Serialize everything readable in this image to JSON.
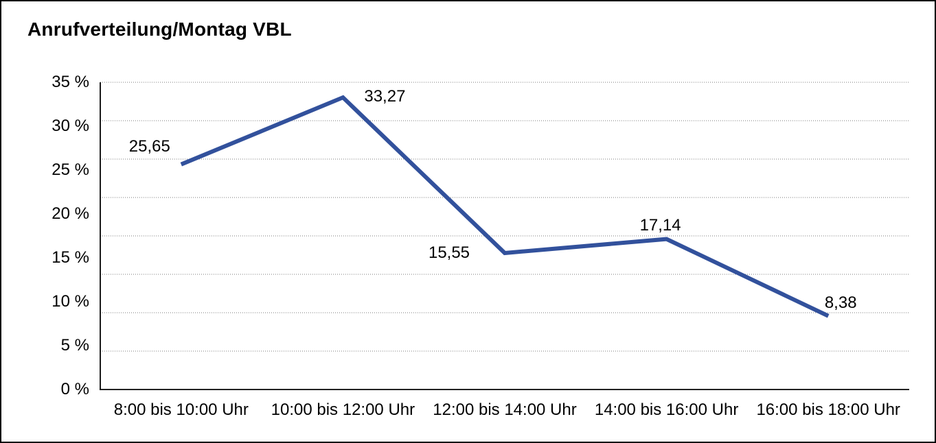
{
  "page": {
    "title": "Anrufverteilung/Montag VBL"
  },
  "chart_data": {
    "type": "line",
    "title": "Anrufverteilung/Montag VBL",
    "categories": [
      "8:00 bis 10:00 Uhr",
      "10:00 bis 12:00 Uhr",
      "12:00 bis 14:00 Uhr",
      "14:00 bis 16:00 Uhr",
      "16:00 bis 18:00 Uhr"
    ],
    "values": [
      25.65,
      33.27,
      15.55,
      17.14,
      8.38
    ],
    "data_labels": [
      "25,65",
      "33,27",
      "15,55",
      "17,14",
      "8,38"
    ],
    "xlabel": "",
    "ylabel": "",
    "y_axis": {
      "min": 0,
      "max": 35,
      "tick_step": 5,
      "tick_labels": [
        "0 %",
        "5 %",
        "10 %",
        "15 %",
        "20 %",
        "25 %",
        "30 %",
        "35 %"
      ]
    },
    "grid": {
      "horizontal_lines": 9,
      "style": "dotted",
      "color": "#7a7a7a"
    },
    "line_color": "#32519C",
    "axis_color": "#000000",
    "legend": "none"
  }
}
